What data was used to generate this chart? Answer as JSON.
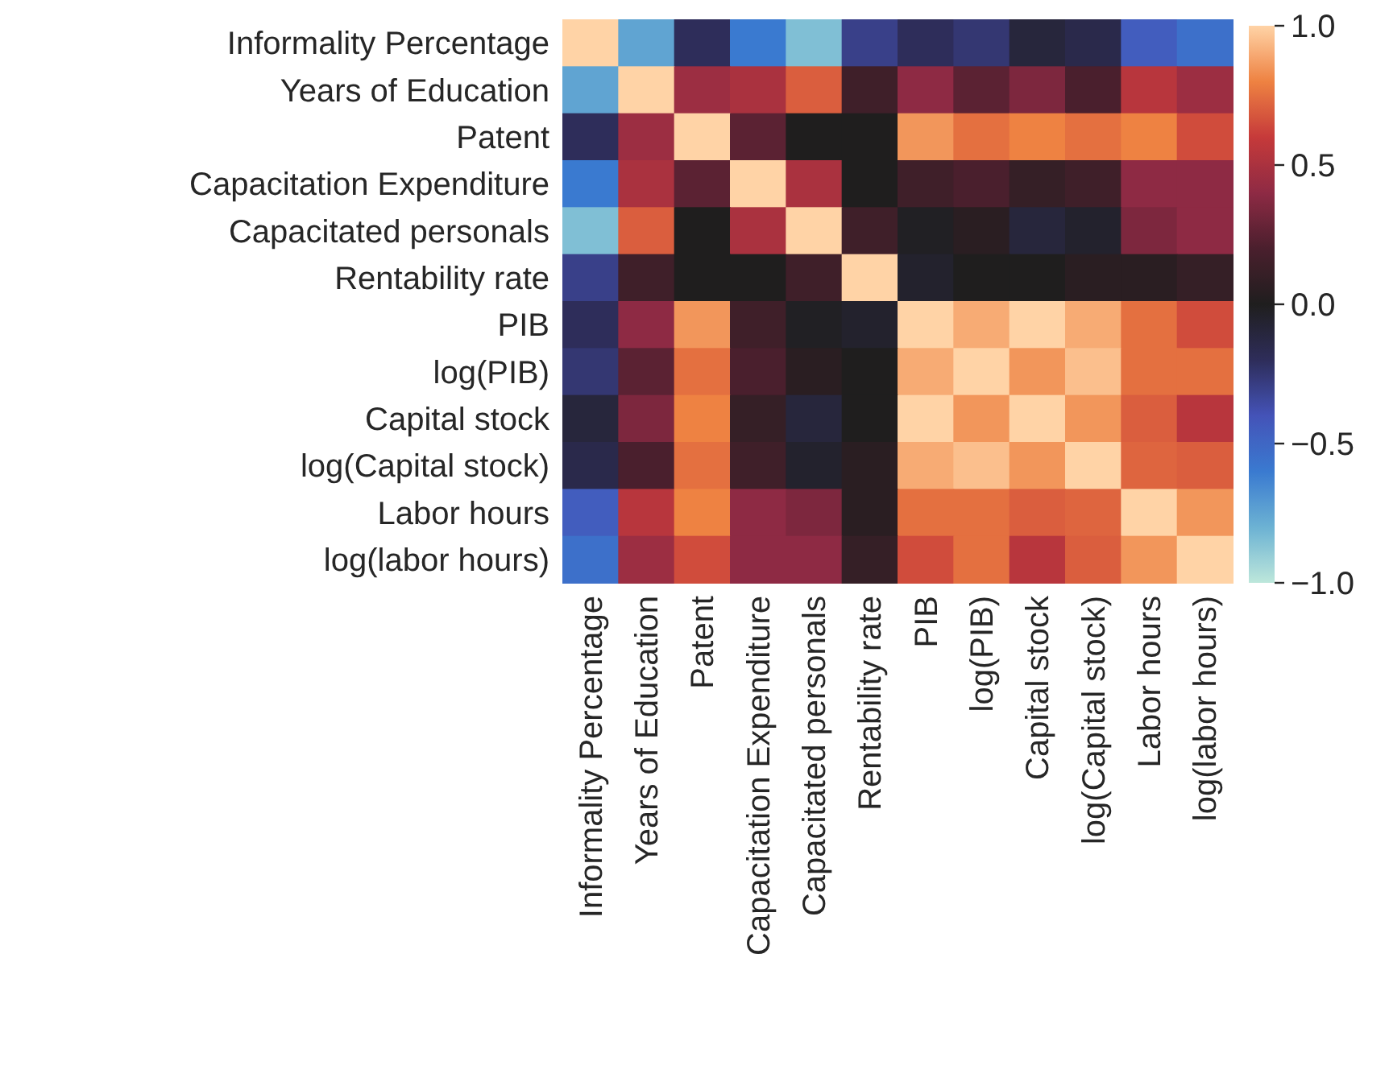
{
  "chart_data": {
    "type": "heatmap",
    "categories": [
      "Informality Percentage",
      "Years of Education",
      "Patent",
      "Capacitation Expenditure",
      "Capacitated personals",
      "Rentability rate",
      "PIB",
      "log(PIB)",
      "Capital stock",
      "log(Capital stock)",
      "Labor hours",
      "log(labor hours)"
    ],
    "y_categories": [
      "Informality Percentage",
      "Years of Education",
      "Patent",
      "Capacitation Expenditure",
      "Capacitated personals",
      "Rentability rate",
      "PIB",
      "log(PIB)",
      "Capital stock",
      "log(Capital stock)",
      "Labor hours",
      "log(labor hours)"
    ],
    "cells": [
      [
        1,
        -0.75,
        -0.2,
        -0.6,
        -0.85,
        -0.3,
        -0.2,
        -0.25,
        -0.1,
        -0.15,
        -0.45,
        -0.55
      ],
      [
        -0.75,
        1,
        0.45,
        0.5,
        0.7,
        0.15,
        0.4,
        0.25,
        0.35,
        0.2,
        0.55,
        0.45
      ],
      [
        -0.2,
        0.45,
        1,
        0.25,
        0,
        0,
        0.85,
        0.75,
        0.8,
        0.75,
        0.8,
        0.65
      ],
      [
        -0.6,
        0.5,
        0.25,
        1,
        0.5,
        0,
        0.15,
        0.2,
        0.1,
        0.15,
        0.4,
        0.4
      ],
      [
        -0.85,
        0.7,
        0,
        0.5,
        1,
        0.15,
        -0.02,
        0.05,
        -0.1,
        -0.05,
        0.35,
        0.4
      ],
      [
        -0.3,
        0.15,
        0,
        0,
        0.15,
        1,
        -0.05,
        0,
        0,
        0.05,
        0.05,
        0.1
      ],
      [
        -0.2,
        0.4,
        0.85,
        0.15,
        -0.02,
        -0.05,
        1,
        0.9,
        1,
        0.9,
        0.75,
        0.65
      ],
      [
        -0.25,
        0.25,
        0.75,
        0.2,
        0.05,
        0,
        0.9,
        1,
        0.85,
        0.95,
        0.75,
        0.75
      ],
      [
        -0.1,
        0.35,
        0.8,
        0.1,
        -0.1,
        0,
        1,
        0.85,
        1,
        0.85,
        0.7,
        0.55
      ],
      [
        -0.15,
        0.2,
        0.75,
        0.15,
        -0.05,
        0.05,
        0.9,
        0.95,
        0.85,
        1,
        0.72,
        0.7
      ],
      [
        -0.45,
        0.55,
        0.8,
        0.4,
        0.35,
        0.05,
        0.75,
        0.75,
        0.7,
        0.72,
        1,
        0.85
      ],
      [
        -0.55,
        0.45,
        0.65,
        0.4,
        0.4,
        0.1,
        0.65,
        0.75,
        0.55,
        0.7,
        0.85,
        1
      ]
    ],
    "clim": [
      -1,
      1
    ],
    "cticks": [
      {
        "value": 1,
        "label": "1.0"
      },
      {
        "value": 0.5,
        "label": "0.5"
      },
      {
        "value": 0,
        "label": "0.0"
      },
      {
        "value": -0.5,
        "label": "−0.5"
      },
      {
        "value": -1,
        "label": "−1.0"
      }
    ]
  }
}
